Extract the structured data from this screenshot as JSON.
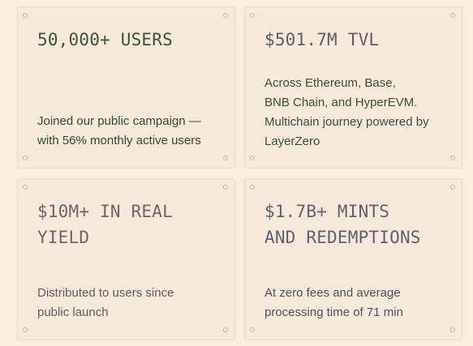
{
  "cards": [
    {
      "stat": "50,000+ USERS",
      "description": "Joined our public campaign —\nwith 56% monthly active users"
    },
    {
      "stat": "$501.7M TVL",
      "description": "Across Ethereum, Base,\nBNB Chain, and HyperEVM.\nMultichain journey powered by\nLayerZero"
    },
    {
      "stat": "$10M+ IN REAL\nYIELD",
      "description": "Distributed to users since\npublic launch"
    },
    {
      "stat": "$1.7B+ MINTS\nAND REDEMPTIONS",
      "description": "At zero fees and average\nprocessing time of 71 min"
    }
  ],
  "colors": {
    "background": "#fbeee0",
    "card": "#f8eadb",
    "card_border": "#ead8c4",
    "green_text": "#37553f",
    "slate_text": "#5f6173"
  }
}
